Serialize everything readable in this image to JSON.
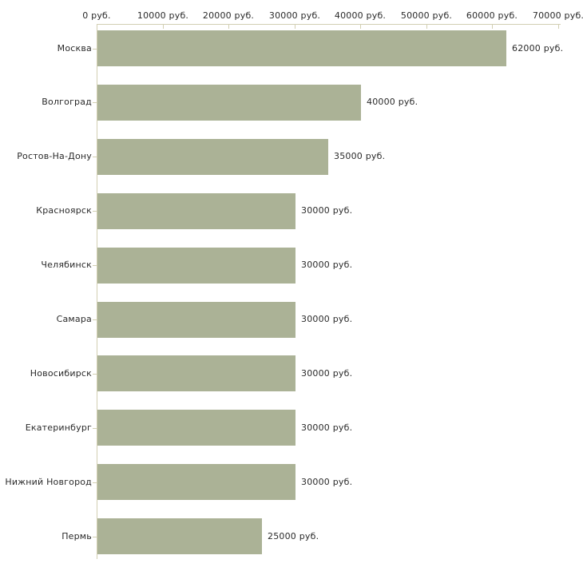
{
  "chart_data": {
    "type": "bar",
    "orientation": "horizontal",
    "title": "",
    "unit": "руб.",
    "categories": [
      "Москва",
      "Волгоград",
      "Ростов-На-Дону",
      "Красноярск",
      "Челябинск",
      "Самара",
      "Новосибирск",
      "Екатеринбург",
      "Нижний Новгород",
      "Пермь"
    ],
    "values": [
      62000,
      40000,
      35000,
      30000,
      30000,
      30000,
      30000,
      30000,
      30000,
      25000
    ],
    "value_labels": [
      "62000 руб.",
      "40000 руб.",
      "35000 руб.",
      "30000 руб.",
      "30000 руб.",
      "30000 руб.",
      "30000 руб.",
      "30000 руб.",
      "30000 руб.",
      "25000 руб."
    ],
    "xlim": [
      0,
      70000
    ],
    "x_ticks": [
      {
        "value": 0,
        "label": "0 руб."
      },
      {
        "value": 10000,
        "label": "10000 руб."
      },
      {
        "value": 20000,
        "label": "20000 руб."
      },
      {
        "value": 30000,
        "label": "30000 руб."
      },
      {
        "value": 40000,
        "label": "40000 руб."
      },
      {
        "value": 50000,
        "label": "50000 руб."
      },
      {
        "value": 60000,
        "label": "60000 руб."
      },
      {
        "value": 70000,
        "label": "70000 руб."
      }
    ],
    "grid": false,
    "legend": "none",
    "colors": {
      "bar": "#abb296",
      "axis": "#d2cfb2",
      "text": "#2a2a2a",
      "background": "#ffffff"
    }
  }
}
